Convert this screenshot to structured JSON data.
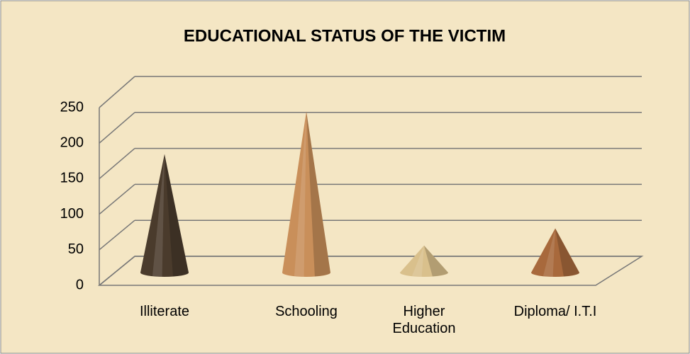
{
  "chart_data": {
    "type": "cone3d",
    "title": "EDUCATIONAL STATUS OF THE VICTIM",
    "categories": [
      "Illiterate",
      "Schooling",
      "Higher Education",
      "Diploma/ I.T.I"
    ],
    "values": [
      166,
      226,
      38,
      62
    ],
    "colors": [
      "#4a3b2c",
      "#c98f5a",
      "#d9c08c",
      "#a8693c"
    ],
    "ylim": [
      0,
      250
    ],
    "yticks": [
      0,
      50,
      100,
      150,
      200,
      250
    ],
    "grid": true
  }
}
